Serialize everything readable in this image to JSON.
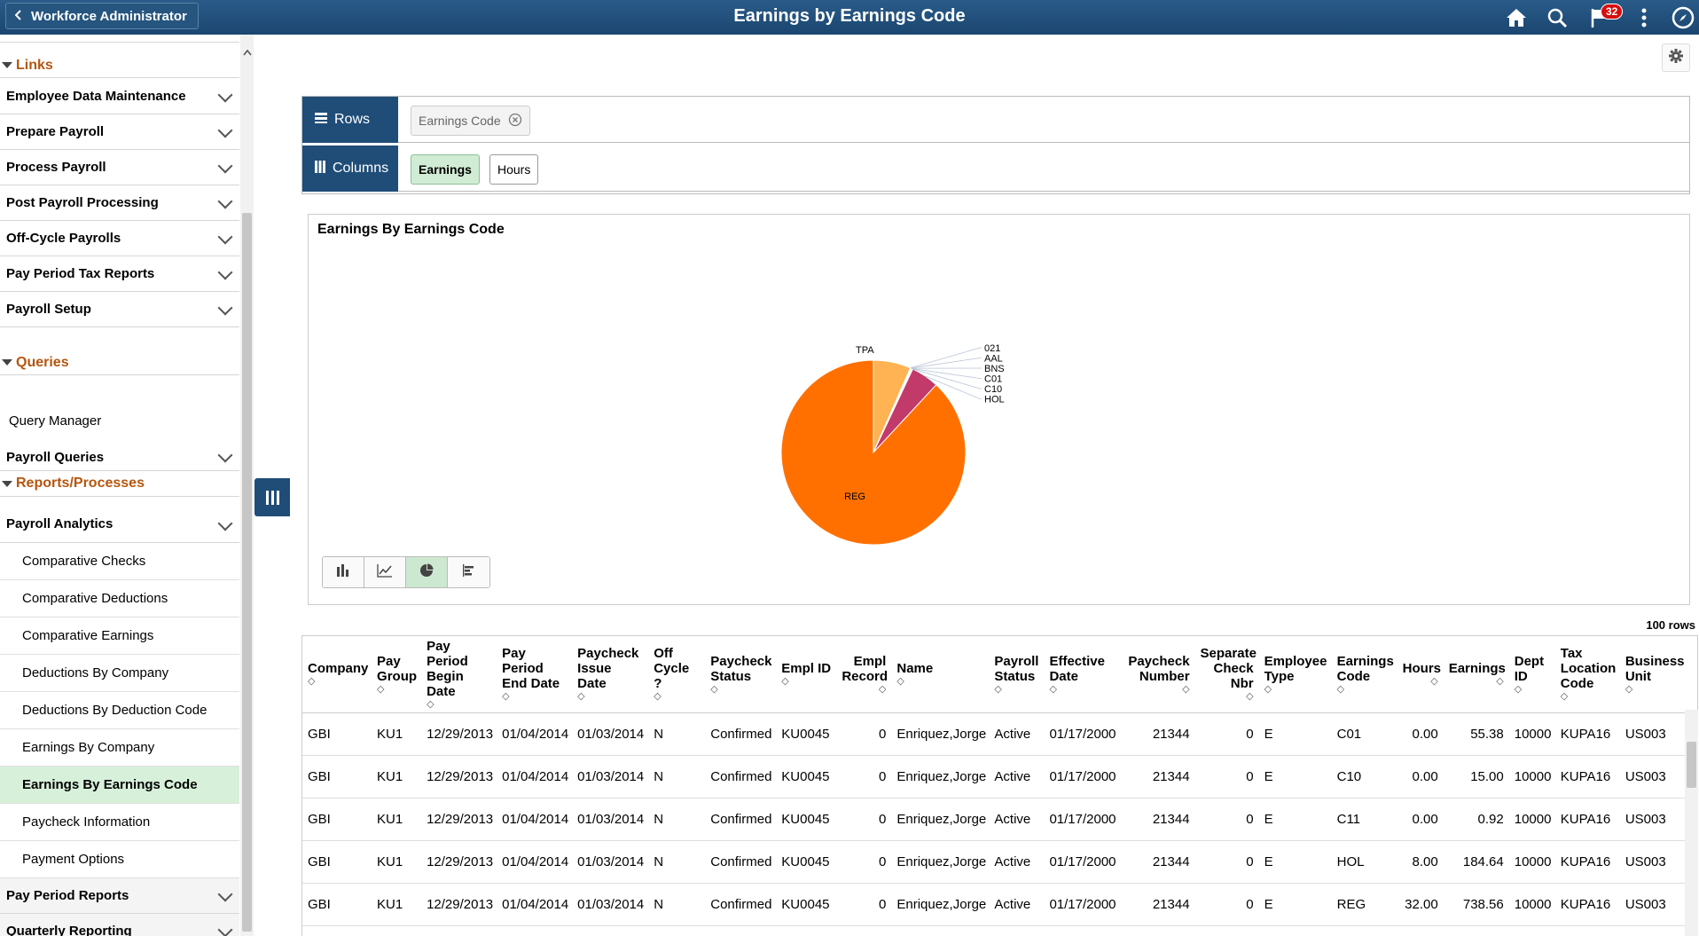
{
  "header": {
    "back_label": "Workforce Administrator",
    "title": "Earnings by Earnings Code",
    "notification_count": "32"
  },
  "sidebar": {
    "sections": {
      "links": "Links",
      "queries": "Queries",
      "reports": "Reports/Processes"
    },
    "links_items": [
      "Employee Data Maintenance",
      "Prepare Payroll",
      "Process Payroll",
      "Post Payroll Processing",
      "Off-Cycle Payrolls",
      "Pay Period Tax Reports",
      "Payroll Setup"
    ],
    "query_manager": "Query Manager",
    "payroll_queries": "Payroll Queries",
    "payroll_analytics": "Payroll Analytics",
    "analytics_items": [
      "Comparative Checks",
      "Comparative Deductions",
      "Comparative Earnings",
      "Deductions By Company",
      "Deductions By Deduction Code",
      "Earnings By Company",
      "Earnings By Earnings Code",
      "Paycheck Information",
      "Payment Options"
    ],
    "pay_period_reports": "Pay Period Reports",
    "quarterly_reporting": "Quarterly Reporting"
  },
  "pivot": {
    "rows_label": "Rows",
    "columns_label": "Columns",
    "row_chip": "Earnings Code",
    "column_chips": [
      "Earnings",
      "Hours"
    ]
  },
  "chart_data": {
    "type": "pie",
    "title": "Earnings By Earnings Code",
    "categories": [
      "REG",
      "TPA",
      "021",
      "AAL",
      "BNS",
      "C01",
      "C10",
      "HOL"
    ],
    "values": [
      738.56,
      55.0,
      0.5,
      0.5,
      0.5,
      1.5,
      0.9,
      41.0
    ],
    "colors": [
      "#ff7000",
      "#ffb352",
      "#e4e4e4",
      "#d0d0d0",
      "#bcbcbc",
      "#f4d2dc",
      "#f0c8a0",
      "#c23a6a"
    ],
    "legend_placement": "leader-lines"
  },
  "grid": {
    "row_count": "100 rows",
    "columns": [
      "Company",
      "Pay Group",
      "Pay Period Begin Date",
      "Pay Period End Date",
      "Paycheck Issue Date",
      "Off Cycle ?",
      "Paycheck Status",
      "Empl ID",
      "Empl Record",
      "Name",
      "Payroll Status",
      "Effective Date",
      "Paycheck Number",
      "Separate Check Nbr",
      "Employee Type",
      "Earnings Code",
      "Hours",
      "Earnings",
      "Dept ID",
      "Tax Location Code",
      "Business Unit"
    ],
    "rows": [
      [
        "GBI",
        "KU1",
        "12/29/2013",
        "01/04/2014",
        "01/03/2014",
        "N",
        "Confirmed",
        "KU0045",
        "0",
        "Enriquez,Jorge",
        "Active",
        "01/17/2000",
        "21344",
        "0",
        "E",
        "C01",
        "0.00",
        "55.38",
        "10000",
        "KUPA16",
        "US003"
      ],
      [
        "GBI",
        "KU1",
        "12/29/2013",
        "01/04/2014",
        "01/03/2014",
        "N",
        "Confirmed",
        "KU0045",
        "0",
        "Enriquez,Jorge",
        "Active",
        "01/17/2000",
        "21344",
        "0",
        "E",
        "C10",
        "0.00",
        "15.00",
        "10000",
        "KUPA16",
        "US003"
      ],
      [
        "GBI",
        "KU1",
        "12/29/2013",
        "01/04/2014",
        "01/03/2014",
        "N",
        "Confirmed",
        "KU0045",
        "0",
        "Enriquez,Jorge",
        "Active",
        "01/17/2000",
        "21344",
        "0",
        "E",
        "C11",
        "0.00",
        "0.92",
        "10000",
        "KUPA16",
        "US003"
      ],
      [
        "GBI",
        "KU1",
        "12/29/2013",
        "01/04/2014",
        "01/03/2014",
        "N",
        "Confirmed",
        "KU0045",
        "0",
        "Enriquez,Jorge",
        "Active",
        "01/17/2000",
        "21344",
        "0",
        "E",
        "HOL",
        "8.00",
        "184.64",
        "10000",
        "KUPA16",
        "US003"
      ],
      [
        "GBI",
        "KU1",
        "12/29/2013",
        "01/04/2014",
        "01/03/2014",
        "N",
        "Confirmed",
        "KU0045",
        "0",
        "Enriquez,Jorge",
        "Active",
        "01/17/2000",
        "21344",
        "0",
        "E",
        "REG",
        "32.00",
        "738.56",
        "10000",
        "KUPA16",
        "US003"
      ]
    ]
  }
}
